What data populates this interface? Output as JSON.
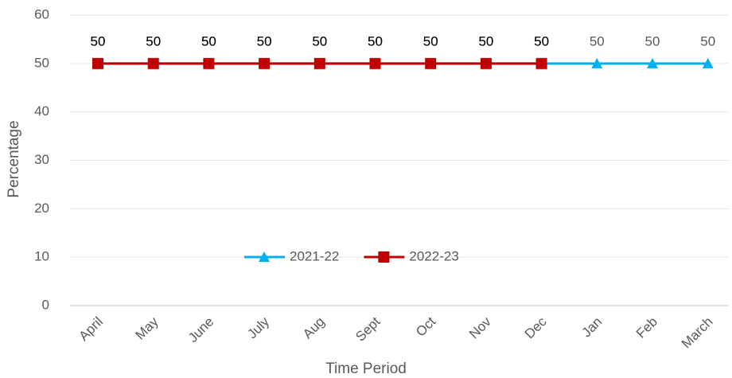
{
  "chart_data": {
    "type": "line",
    "x_label": "Time Period",
    "y_label": "Percentage",
    "categories": [
      "April",
      "May",
      "June",
      "July",
      "Aug",
      "Sept",
      "Oct",
      "Nov",
      "Dec",
      "Jan",
      "Feb",
      "March"
    ],
    "series": [
      {
        "name": "2021-22",
        "color": "#00b0f0",
        "marker": "triangle",
        "values": [
          50,
          50,
          50,
          50,
          50,
          50,
          50,
          50,
          50,
          50,
          50,
          50
        ]
      },
      {
        "name": "2022-23",
        "color": "#c00000",
        "marker": "square",
        "values": [
          50,
          50,
          50,
          50,
          50,
          50,
          50,
          50,
          50,
          null,
          null,
          null
        ]
      }
    ],
    "ylim": [
      0,
      60
    ],
    "yticks": [
      0,
      10,
      20,
      30,
      40,
      50,
      60
    ],
    "grid": true,
    "data_labels": true,
    "legend": "lower-center"
  }
}
